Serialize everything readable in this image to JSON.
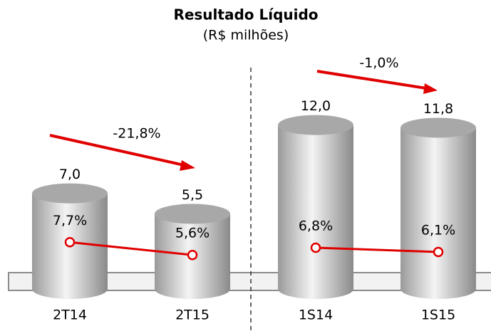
{
  "chart_data": {
    "type": "cylinder-bar-line",
    "title": "Resultado Líquido",
    "subtitle": "(R$ milhões)",
    "categories": [
      "2T14",
      "2T15",
      "1S14",
      "1S15"
    ],
    "series": [
      {
        "type": "bar",
        "color": "#c8c8c8",
        "values": [
          7.0,
          5.5,
          12.0,
          11.8
        ],
        "value_labels": [
          "7,0",
          "5,5",
          "12,0",
          "11,8"
        ]
      },
      {
        "type": "line",
        "axis": "y2",
        "color": "#e00000",
        "values": [
          7.7,
          5.6,
          6.8,
          6.1
        ],
        "value_labels": [
          "7,7%",
          "5,6%",
          "6,8%",
          "6,1%"
        ]
      }
    ],
    "annotations": [
      "-21,8%",
      "-1,0%"
    ],
    "ylim": [
      0,
      20
    ],
    "y2lim": [
      0,
      45
    ]
  }
}
